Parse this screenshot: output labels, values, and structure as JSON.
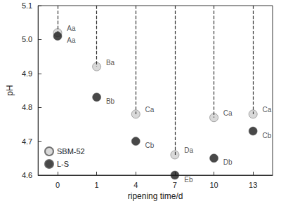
{
  "chart_data": {
    "type": "scatter",
    "x_label": "ripening time/d",
    "y_label": "pH",
    "categories": [
      "0",
      "1",
      "4",
      "7",
      "10",
      "13"
    ],
    "series": [
      {
        "name": "SBM-52",
        "color": "#cfcfcf",
        "marker": "circle",
        "values": [
          5.02,
          4.92,
          4.78,
          4.66,
          4.77,
          4.78
        ],
        "labels": [
          "Aa",
          "Ba",
          "Ca",
          "Da",
          "Ca",
          "Ca"
        ]
      },
      {
        "name": "L-S",
        "color": "#1a1a1a",
        "marker": "circle",
        "values": [
          5.01,
          4.83,
          4.7,
          4.6,
          4.65,
          4.73
        ],
        "labels": [
          "Aa",
          "Bb",
          "Cb",
          "Eb",
          "Db",
          "Cb"
        ]
      }
    ],
    "ylim": [
      4.6,
      5.1
    ],
    "yticks": [
      4.6,
      4.7,
      4.8,
      4.9,
      {
        "value": 5,
        "label": "5.0"
      },
      5.1
    ],
    "grid": false,
    "legend": "lower left"
  }
}
